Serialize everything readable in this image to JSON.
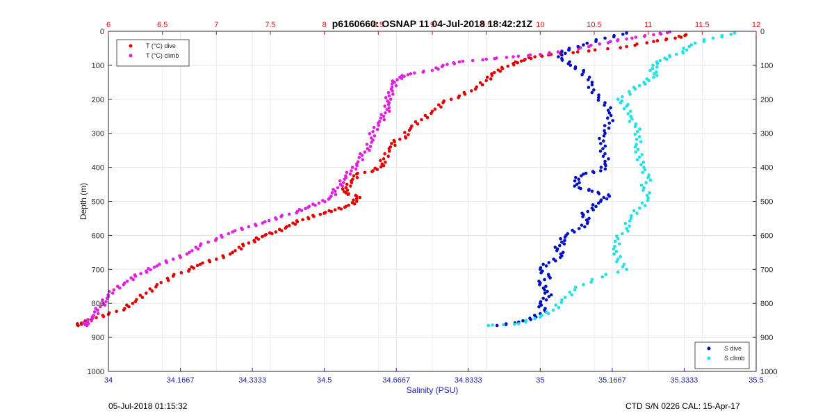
{
  "chart_data": {
    "type": "scatter",
    "title": "p6160660: OSNAP 11 04-Jul-2018 18:42:21Z",
    "ylabel": "Depth (m)",
    "xlabel": "Salinity (PSU)",
    "grid": true,
    "y_axis": {
      "range": [
        0,
        1000
      ],
      "reversed": true,
      "ticks": [
        0,
        100,
        200,
        300,
        400,
        500,
        600,
        700,
        800,
        900,
        1000
      ],
      "tick_labels": [
        "0",
        "100",
        "200",
        "300",
        "400",
        "500",
        "600",
        "700",
        "800",
        "900",
        "1000"
      ]
    },
    "x_axis_bottom": {
      "label": "Salinity (PSU)",
      "range": [
        34,
        35.5
      ],
      "ticks": [
        34,
        34.1667,
        34.3333,
        34.5,
        34.6667,
        34.8333,
        35,
        35.1667,
        35.3333,
        35.5
      ],
      "tick_labels": [
        "34",
        "34.1667",
        "34.3333",
        "34.5",
        "34.6667",
        "34.8333",
        "35",
        "35.1667",
        "35.3333",
        "35.5"
      ],
      "color": "#2020b0"
    },
    "x_axis_top": {
      "range": [
        6,
        12
      ],
      "ticks": [
        6,
        6.5,
        7,
        7.5,
        8,
        8.5,
        9,
        9.5,
        10,
        10.5,
        11,
        11.5,
        12
      ],
      "tick_labels": [
        "6",
        "6.5",
        "7",
        "7.5",
        "8",
        "8.5",
        "9",
        "9.5",
        "10",
        "10.5",
        "11",
        "11.5",
        "12"
      ],
      "color": "#d01010"
    },
    "legend_temperature": {
      "placement": "top-left",
      "entries": [
        {
          "label": "T (°C) dive",
          "color": "#e00000"
        },
        {
          "label": "T (°C) climb",
          "color": "#e020e0"
        }
      ]
    },
    "legend_salinity": {
      "placement": "bottom-right",
      "entries": [
        {
          "label": "S dive",
          "color": "#0010c0"
        },
        {
          "label": "S climb",
          "color": "#20e0e8"
        }
      ]
    },
    "series": [
      {
        "name": "T (°C) dive",
        "axis": "top",
        "color": "#e00000",
        "points": [
          [
            11.35,
            10
          ],
          [
            11.25,
            20
          ],
          [
            11.05,
            30
          ],
          [
            10.8,
            45
          ],
          [
            10.45,
            58
          ],
          [
            10.1,
            68
          ],
          [
            9.95,
            75
          ],
          [
            9.85,
            85
          ],
          [
            9.75,
            95
          ],
          [
            9.65,
            110
          ],
          [
            9.55,
            125
          ],
          [
            9.5,
            145
          ],
          [
            9.4,
            170
          ],
          [
            9.25,
            190
          ],
          [
            9.1,
            210
          ],
          [
            9.0,
            235
          ],
          [
            8.9,
            260
          ],
          [
            8.8,
            285
          ],
          [
            8.75,
            310
          ],
          [
            8.65,
            325
          ],
          [
            8.6,
            345
          ],
          [
            8.55,
            375
          ],
          [
            8.55,
            395
          ],
          [
            8.45,
            410
          ],
          [
            8.3,
            420
          ],
          [
            8.25,
            440
          ],
          [
            8.2,
            460
          ],
          [
            8.2,
            475
          ],
          [
            8.3,
            485
          ],
          [
            8.3,
            500
          ],
          [
            8.2,
            515
          ],
          [
            8.1,
            525
          ],
          [
            8.0,
            535
          ],
          [
            7.85,
            548
          ],
          [
            7.75,
            560
          ],
          [
            7.65,
            575
          ],
          [
            7.55,
            590
          ],
          [
            7.45,
            600
          ],
          [
            7.35,
            615
          ],
          [
            7.25,
            630
          ],
          [
            7.15,
            650
          ],
          [
            7.0,
            670
          ],
          [
            6.85,
            685
          ],
          [
            6.75,
            700
          ],
          [
            6.6,
            720
          ],
          [
            6.45,
            745
          ],
          [
            6.35,
            770
          ],
          [
            6.25,
            795
          ],
          [
            6.15,
            815
          ],
          [
            6.0,
            832
          ],
          [
            5.85,
            845
          ],
          [
            5.75,
            858
          ],
          [
            5.72,
            865
          ]
        ]
      },
      {
        "name": "T (°C) climb",
        "axis": "top",
        "color": "#e020e0",
        "points": [
          [
            11.2,
            2
          ],
          [
            11.05,
            10
          ],
          [
            10.85,
            20
          ],
          [
            10.65,
            30
          ],
          [
            10.45,
            45
          ],
          [
            10.2,
            58
          ],
          [
            10.0,
            68
          ],
          [
            9.75,
            75
          ],
          [
            9.5,
            82
          ],
          [
            9.25,
            90
          ],
          [
            9.1,
            100
          ],
          [
            9.0,
            115
          ],
          [
            8.8,
            125
          ],
          [
            8.7,
            135
          ],
          [
            8.65,
            150
          ],
          [
            8.62,
            170
          ],
          [
            8.6,
            190
          ],
          [
            8.6,
            210
          ],
          [
            8.58,
            230
          ],
          [
            8.55,
            250
          ],
          [
            8.5,
            270
          ],
          [
            8.45,
            295
          ],
          [
            8.45,
            320
          ],
          [
            8.4,
            345
          ],
          [
            8.35,
            365
          ],
          [
            8.3,
            390
          ],
          [
            8.25,
            410
          ],
          [
            8.2,
            430
          ],
          [
            8.15,
            450
          ],
          [
            8.1,
            470
          ],
          [
            8.05,
            490
          ],
          [
            7.95,
            505
          ],
          [
            7.85,
            518
          ],
          [
            7.75,
            530
          ],
          [
            7.6,
            545
          ],
          [
            7.45,
            560
          ],
          [
            7.3,
            575
          ],
          [
            7.15,
            590
          ],
          [
            7.0,
            610
          ],
          [
            6.85,
            630
          ],
          [
            6.75,
            650
          ],
          [
            6.6,
            670
          ],
          [
            6.45,
            690
          ],
          [
            6.35,
            705
          ],
          [
            6.25,
            720
          ],
          [
            6.15,
            740
          ],
          [
            6.05,
            760
          ],
          [
            6.0,
            780
          ],
          [
            5.95,
            800
          ],
          [
            5.9,
            820
          ],
          [
            5.85,
            840
          ],
          [
            5.8,
            855
          ],
          [
            5.8,
            865
          ]
        ]
      },
      {
        "name": "S dive",
        "axis": "bottom",
        "color": "#0010c0",
        "points": [
          [
            35.2,
            5
          ],
          [
            35.15,
            20
          ],
          [
            35.1,
            40
          ],
          [
            35.05,
            60
          ],
          [
            35.05,
            80
          ],
          [
            35.07,
            100
          ],
          [
            35.1,
            120
          ],
          [
            35.12,
            150
          ],
          [
            35.12,
            180
          ],
          [
            35.15,
            210
          ],
          [
            35.16,
            240
          ],
          [
            35.16,
            270
          ],
          [
            35.15,
            300
          ],
          [
            35.14,
            330
          ],
          [
            35.15,
            360
          ],
          [
            35.15,
            390
          ],
          [
            35.14,
            410
          ],
          [
            35.1,
            420
          ],
          [
            35.08,
            440
          ],
          [
            35.09,
            460
          ],
          [
            35.12,
            470
          ],
          [
            35.16,
            485
          ],
          [
            35.14,
            500
          ],
          [
            35.12,
            520
          ],
          [
            35.1,
            540
          ],
          [
            35.11,
            560
          ],
          [
            35.09,
            580
          ],
          [
            35.06,
            600
          ],
          [
            35.05,
            620
          ],
          [
            35.04,
            640
          ],
          [
            35.05,
            660
          ],
          [
            35.02,
            680
          ],
          [
            35.0,
            700
          ],
          [
            35.02,
            720
          ],
          [
            35.0,
            740
          ],
          [
            35.01,
            760
          ],
          [
            35.02,
            780
          ],
          [
            35.0,
            800
          ],
          [
            35.01,
            820
          ],
          [
            34.99,
            840
          ],
          [
            34.95,
            855
          ],
          [
            34.9,
            865
          ]
        ]
      },
      {
        "name": "S climb",
        "axis": "bottom",
        "color": "#20e0e8",
        "points": [
          [
            35.45,
            5
          ],
          [
            35.4,
            20
          ],
          [
            35.35,
            40
          ],
          [
            35.33,
            60
          ],
          [
            35.3,
            75
          ],
          [
            35.27,
            90
          ],
          [
            35.26,
            110
          ],
          [
            35.27,
            130
          ],
          [
            35.24,
            150
          ],
          [
            35.22,
            170
          ],
          [
            35.18,
            200
          ],
          [
            35.2,
            220
          ],
          [
            35.21,
            250
          ],
          [
            35.22,
            280
          ],
          [
            35.23,
            310
          ],
          [
            35.22,
            340
          ],
          [
            35.23,
            370
          ],
          [
            35.24,
            400
          ],
          [
            35.25,
            430
          ],
          [
            35.24,
            460
          ],
          [
            35.25,
            490
          ],
          [
            35.23,
            520
          ],
          [
            35.21,
            550
          ],
          [
            35.2,
            580
          ],
          [
            35.18,
            610
          ],
          [
            35.17,
            640
          ],
          [
            35.18,
            670
          ],
          [
            35.2,
            700
          ],
          [
            35.12,
            730
          ],
          [
            35.08,
            760
          ],
          [
            35.05,
            790
          ],
          [
            35.03,
            820
          ],
          [
            35.0,
            840
          ],
          [
            34.95,
            860
          ],
          [
            34.88,
            865
          ]
        ]
      }
    ]
  },
  "footer": {
    "left": "05-Jul-2018 01:15:32",
    "right": "CTD S/N 0226  CAL: 15-Apr-17"
  }
}
